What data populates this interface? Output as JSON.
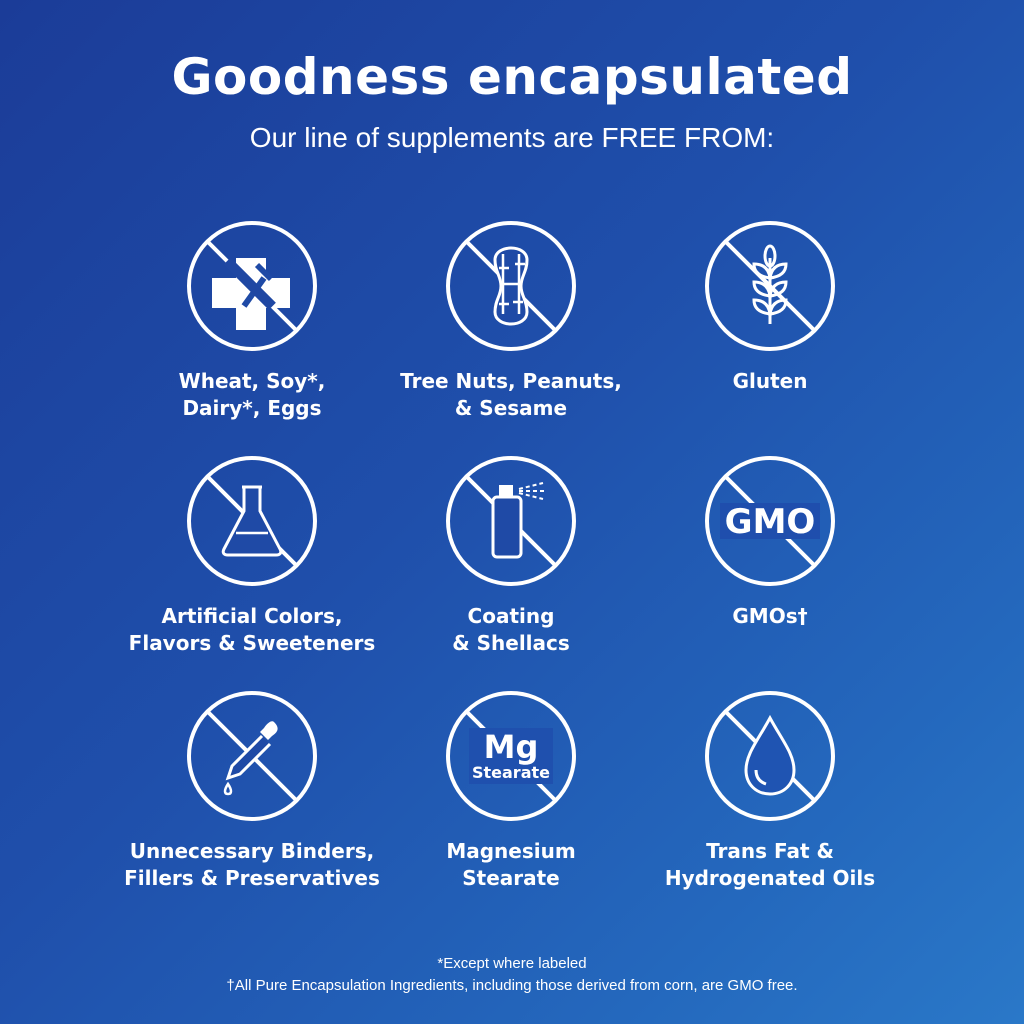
{
  "header": {
    "title": "Goodness encapsulated",
    "subtitle": "Our line of supplements are FREE FROM:"
  },
  "items": [
    {
      "icon": "allergen-cross-fork-icon",
      "line1": "Wheat, Soy*,",
      "line2": "Dairy*, Eggs"
    },
    {
      "icon": "peanut-icon",
      "line1": "Tree Nuts, Peanuts,",
      "line2": "& Sesame"
    },
    {
      "icon": "wheat-icon",
      "line1": "Gluten",
      "line2": ""
    },
    {
      "icon": "flask-icon",
      "line1": "Artificial Colors,",
      "line2": "Flavors & Sweeteners"
    },
    {
      "icon": "spray-can-icon",
      "line1": "Coating",
      "line2": "& Shellacs"
    },
    {
      "icon": "gmo-icon",
      "icon_text": "GMO",
      "line1": "GMOs†",
      "line2": ""
    },
    {
      "icon": "dropper-icon",
      "line1": "Unnecessary Binders,",
      "line2": "Fillers & Preservatives"
    },
    {
      "icon": "mg-stearate-icon",
      "icon_text": "Mg",
      "icon_subtext": "Stearate",
      "line1": "Magnesium",
      "line2": "Stearate"
    },
    {
      "icon": "oil-drop-icon",
      "line1": "Trans Fat &",
      "line2": "Hydrogenated Oils"
    }
  ],
  "footnotes": {
    "asterisk": "*Except where labeled",
    "dagger": "†All Pure Encapsulation Ingredients, including those derived from corn, are GMO free."
  },
  "colors": {
    "background_start": "#1b3c98",
    "background_end": "#2a78c8",
    "foreground": "#ffffff"
  }
}
